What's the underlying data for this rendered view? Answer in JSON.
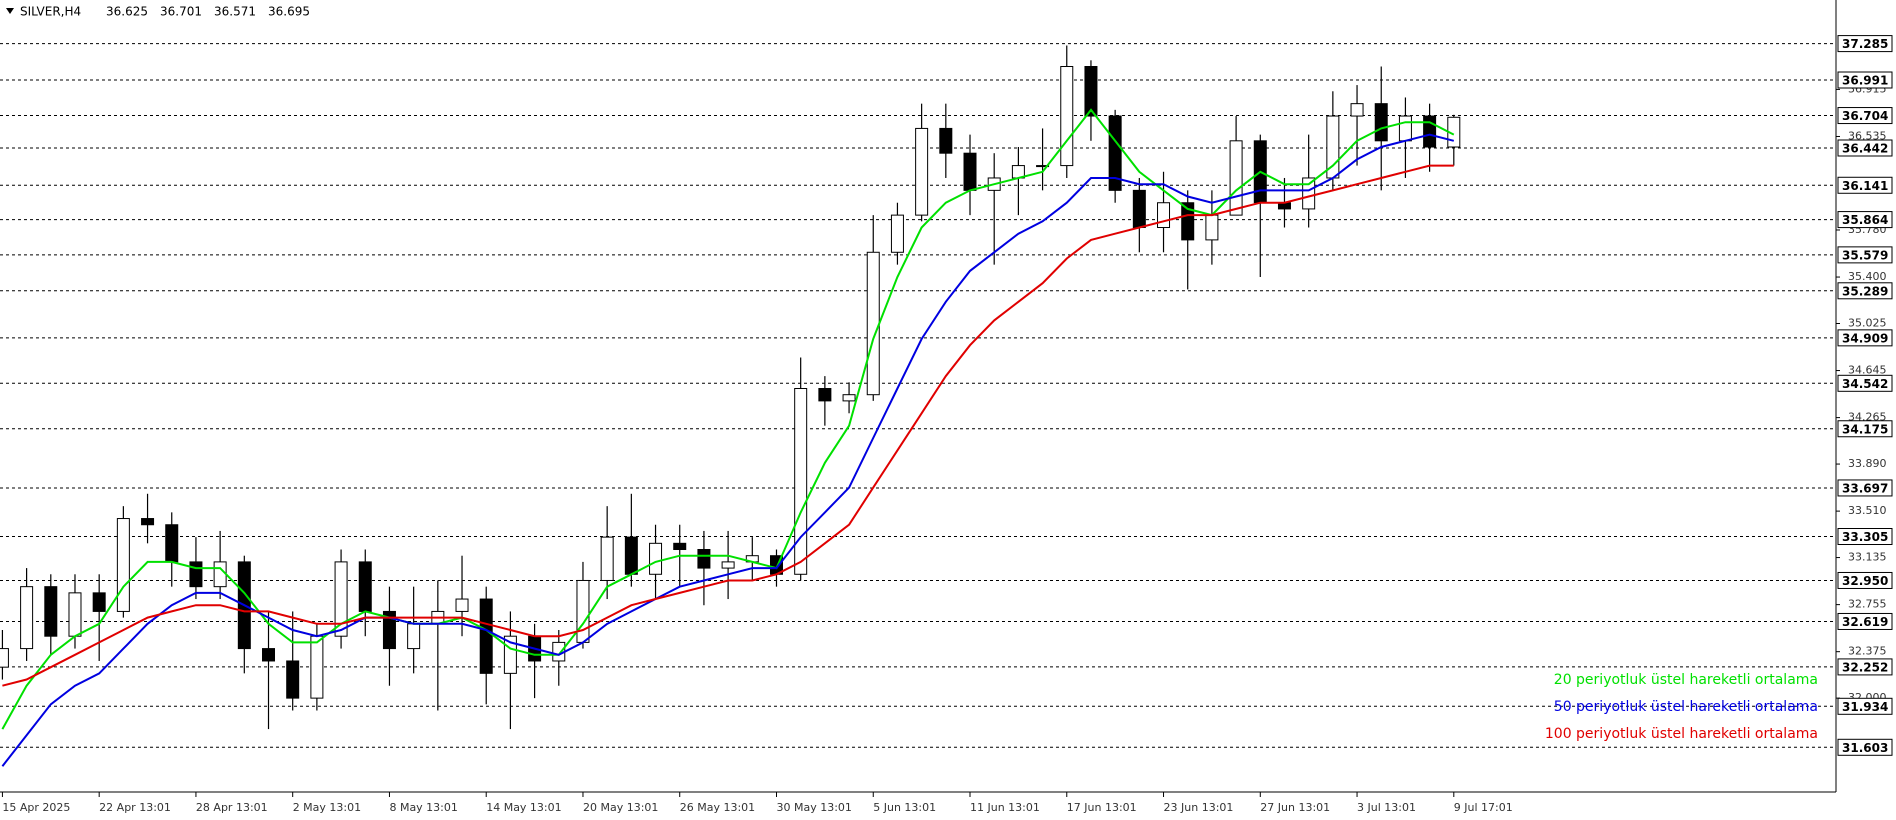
{
  "chart_data": {
    "type": "candlestick",
    "header": {
      "symbol": "SILVER,H4",
      "ohlc": [
        36.625,
        36.701,
        36.571,
        36.695
      ]
    },
    "categories": [
      "15 Apr 2025",
      null,
      null,
      null,
      "22 Apr 13:01",
      null,
      null,
      null,
      "28 Apr 13:01",
      null,
      null,
      null,
      "2 May 13:01",
      null,
      null,
      null,
      "8 May 13:01",
      null,
      null,
      null,
      "14 May 13:01",
      null,
      null,
      null,
      "20 May 13:01",
      null,
      null,
      null,
      "26 May 13:01",
      null,
      null,
      null,
      "30 May 13:01",
      null,
      null,
      null,
      "5 Jun 13:01",
      null,
      null,
      null,
      "11 Jun 13:01",
      null,
      null,
      null,
      "17 Jun 13:01",
      null,
      null,
      null,
      "23 Jun 13:01",
      null,
      null,
      null,
      "27 Jun 13:01",
      null,
      null,
      null,
      "3 Jul 13:01",
      null,
      null,
      null,
      "9 Jul 17:01"
    ],
    "open": [
      32.25,
      32.4,
      32.9,
      32.5,
      32.85,
      32.7,
      33.45,
      33.4,
      33.1,
      32.9,
      33.1,
      32.4,
      32.3,
      32.0,
      32.5,
      33.1,
      32.7,
      32.4,
      32.6,
      32.7,
      32.8,
      32.2,
      32.5,
      32.3,
      32.45,
      32.95,
      33.3,
      33.0,
      33.25,
      33.2,
      33.05,
      33.1,
      33.15,
      33.0,
      34.5,
      34.4,
      34.45,
      35.6,
      35.9,
      36.6,
      36.4,
      36.1,
      36.2,
      36.3,
      36.3,
      37.1,
      36.7,
      36.1,
      35.8,
      36.0,
      35.7,
      35.9,
      36.5,
      36.0,
      35.95,
      36.2,
      36.7,
      36.8,
      36.5,
      36.7,
      36.45
    ],
    "high": [
      32.55,
      33.05,
      33.0,
      33.0,
      33.0,
      33.55,
      33.65,
      33.5,
      33.3,
      33.35,
      33.15,
      32.7,
      32.7,
      32.6,
      33.2,
      33.2,
      32.9,
      32.9,
      32.95,
      33.15,
      32.9,
      32.7,
      32.6,
      32.55,
      33.1,
      33.55,
      33.65,
      33.4,
      33.4,
      33.35,
      33.35,
      33.3,
      33.2,
      34.75,
      34.6,
      34.55,
      35.9,
      36.0,
      36.8,
      36.8,
      36.55,
      36.4,
      36.45,
      36.6,
      37.27,
      37.15,
      36.75,
      36.2,
      36.25,
      36.1,
      36.1,
      36.7,
      36.55,
      36.2,
      36.55,
      36.9,
      36.95,
      37.1,
      36.85,
      36.8,
      36.71
    ],
    "low": [
      32.15,
      32.3,
      32.35,
      32.4,
      32.3,
      32.65,
      33.25,
      32.9,
      32.8,
      32.8,
      32.2,
      31.75,
      31.9,
      31.9,
      32.4,
      32.5,
      32.1,
      32.2,
      31.9,
      32.5,
      31.95,
      31.75,
      32.0,
      32.1,
      32.4,
      32.8,
      32.9,
      32.8,
      32.9,
      32.75,
      32.8,
      32.95,
      32.9,
      32.95,
      34.2,
      34.3,
      34.4,
      35.5,
      35.85,
      36.2,
      35.9,
      35.5,
      35.9,
      36.1,
      36.2,
      36.5,
      36.0,
      35.6,
      35.6,
      35.3,
      35.5,
      35.9,
      35.4,
      35.8,
      35.8,
      36.1,
      36.3,
      36.1,
      36.2,
      36.25,
      36.3
    ],
    "close": [
      32.4,
      32.9,
      32.5,
      32.85,
      32.7,
      33.45,
      33.4,
      33.1,
      32.9,
      33.1,
      32.4,
      32.3,
      32.0,
      32.5,
      33.1,
      32.7,
      32.4,
      32.6,
      32.7,
      32.8,
      32.2,
      32.5,
      32.3,
      32.45,
      32.95,
      33.3,
      33.0,
      33.25,
      33.2,
      33.05,
      33.1,
      33.15,
      33.0,
      34.5,
      34.4,
      34.45,
      35.6,
      35.9,
      36.6,
      36.4,
      36.1,
      36.2,
      36.3,
      36.3,
      37.1,
      36.7,
      36.1,
      35.8,
      36.0,
      35.7,
      35.9,
      36.5,
      36.0,
      35.95,
      36.2,
      36.7,
      36.8,
      36.5,
      36.7,
      36.45,
      36.69
    ],
    "series": [
      {
        "name": "20 periyotluk üstel hareketli ortalama",
        "color": "#00e000",
        "values": [
          31.75,
          32.1,
          32.35,
          32.5,
          32.6,
          32.9,
          33.1,
          33.1,
          33.05,
          33.05,
          32.85,
          32.6,
          32.45,
          32.45,
          32.6,
          32.7,
          32.65,
          32.6,
          32.6,
          32.65,
          32.55,
          32.4,
          32.35,
          32.35,
          32.6,
          32.9,
          33.0,
          33.1,
          33.15,
          33.15,
          33.15,
          33.1,
          33.05,
          33.5,
          33.9,
          34.2,
          34.9,
          35.4,
          35.8,
          36.0,
          36.1,
          36.15,
          36.2,
          36.25,
          36.5,
          36.75,
          36.5,
          36.25,
          36.1,
          35.95,
          35.9,
          36.1,
          36.25,
          36.15,
          36.15,
          36.3,
          36.5,
          36.6,
          36.65,
          36.65,
          36.55
        ]
      },
      {
        "name": "50 periyotluk üstel hareketli ortalama",
        "color": "#0000e0",
        "values": [
          31.45,
          31.7,
          31.95,
          32.1,
          32.2,
          32.4,
          32.6,
          32.75,
          32.85,
          32.85,
          32.75,
          32.65,
          32.55,
          32.5,
          32.55,
          32.65,
          32.65,
          32.6,
          32.6,
          32.6,
          32.55,
          32.45,
          32.4,
          32.35,
          32.45,
          32.6,
          32.7,
          32.8,
          32.9,
          32.95,
          33.0,
          33.05,
          33.05,
          33.3,
          33.5,
          33.7,
          34.1,
          34.5,
          34.9,
          35.2,
          35.45,
          35.6,
          35.75,
          35.85,
          36.0,
          36.2,
          36.2,
          36.15,
          36.15,
          36.05,
          36.0,
          36.05,
          36.1,
          36.1,
          36.1,
          36.2,
          36.35,
          36.45,
          36.5,
          36.55,
          36.5
        ]
      },
      {
        "name": "100 periyotluk üstel hareketli ortalama",
        "color": "#e00000",
        "values": [
          32.1,
          32.15,
          32.25,
          32.35,
          32.45,
          32.55,
          32.65,
          32.7,
          32.75,
          32.75,
          32.7,
          32.7,
          32.65,
          32.6,
          32.6,
          32.65,
          32.65,
          32.65,
          32.65,
          32.65,
          32.6,
          32.55,
          32.5,
          32.5,
          32.55,
          32.65,
          32.75,
          32.8,
          32.85,
          32.9,
          32.95,
          32.95,
          33.0,
          33.1,
          33.25,
          33.4,
          33.7,
          34.0,
          34.3,
          34.6,
          34.85,
          35.05,
          35.2,
          35.35,
          35.55,
          35.7,
          35.75,
          35.8,
          35.85,
          35.9,
          35.9,
          35.95,
          36.0,
          36.0,
          36.05,
          36.1,
          36.15,
          36.2,
          36.25,
          36.3,
          36.3
        ]
      }
    ],
    "ylim": [
      31.242,
      37.637
    ],
    "yticks": [
      36.915,
      36.535,
      {
        "value": 35.78,
        "label": "35.780"
      },
      {
        "value": 35.4,
        "label": "35.400"
      },
      35.025,
      34.645,
      34.265,
      {
        "value": 33.89,
        "label": "33.890"
      },
      {
        "value": 33.51,
        "label": "33.510"
      },
      33.135,
      32.755,
      32.375,
      {
        "value": 32,
        "label": "32.000"
      }
    ],
    "levels": [
      37.285,
      36.991,
      36.704,
      36.442,
      36.141,
      35.864,
      35.579,
      35.289,
      34.909,
      34.542,
      34.175,
      33.697,
      33.305,
      {
        "value": 32.95,
        "label": "32.950"
      },
      32.619,
      32.252,
      31.934,
      31.603
    ],
    "legend": "lower right"
  }
}
